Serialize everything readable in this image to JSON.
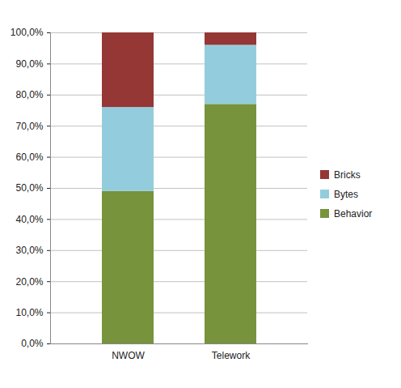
{
  "chart_data": {
    "type": "bar",
    "stacked": true,
    "orientation": "vertical",
    "categories": [
      "NWOW",
      "Telework"
    ],
    "series": [
      {
        "name": "Behavior",
        "color": "#77933c",
        "values": [
          49,
          77
        ]
      },
      {
        "name": "Bytes",
        "color": "#93cddd",
        "values": [
          27,
          19
        ]
      },
      {
        "name": "Bricks",
        "color": "#953735",
        "values": [
          24,
          4
        ]
      }
    ],
    "ylim": [
      0,
      100
    ],
    "yticks": [
      {
        "value": 0,
        "label": "0,0%"
      },
      {
        "value": 10,
        "label": "10,0%"
      },
      {
        "value": 20,
        "label": "20,0%"
      },
      {
        "value": 30,
        "label": "30,0%"
      },
      {
        "value": 40,
        "label": "40,0%"
      },
      {
        "value": 50,
        "label": "50,0%"
      },
      {
        "value": 60,
        "label": "60,0%"
      },
      {
        "value": 70,
        "label": "70,0%"
      },
      {
        "value": 80,
        "label": "80,0%"
      },
      {
        "value": 90,
        "label": "90,0%"
      },
      {
        "value": 100,
        "label": "100,0%"
      }
    ],
    "grid": true,
    "legend": "right"
  }
}
